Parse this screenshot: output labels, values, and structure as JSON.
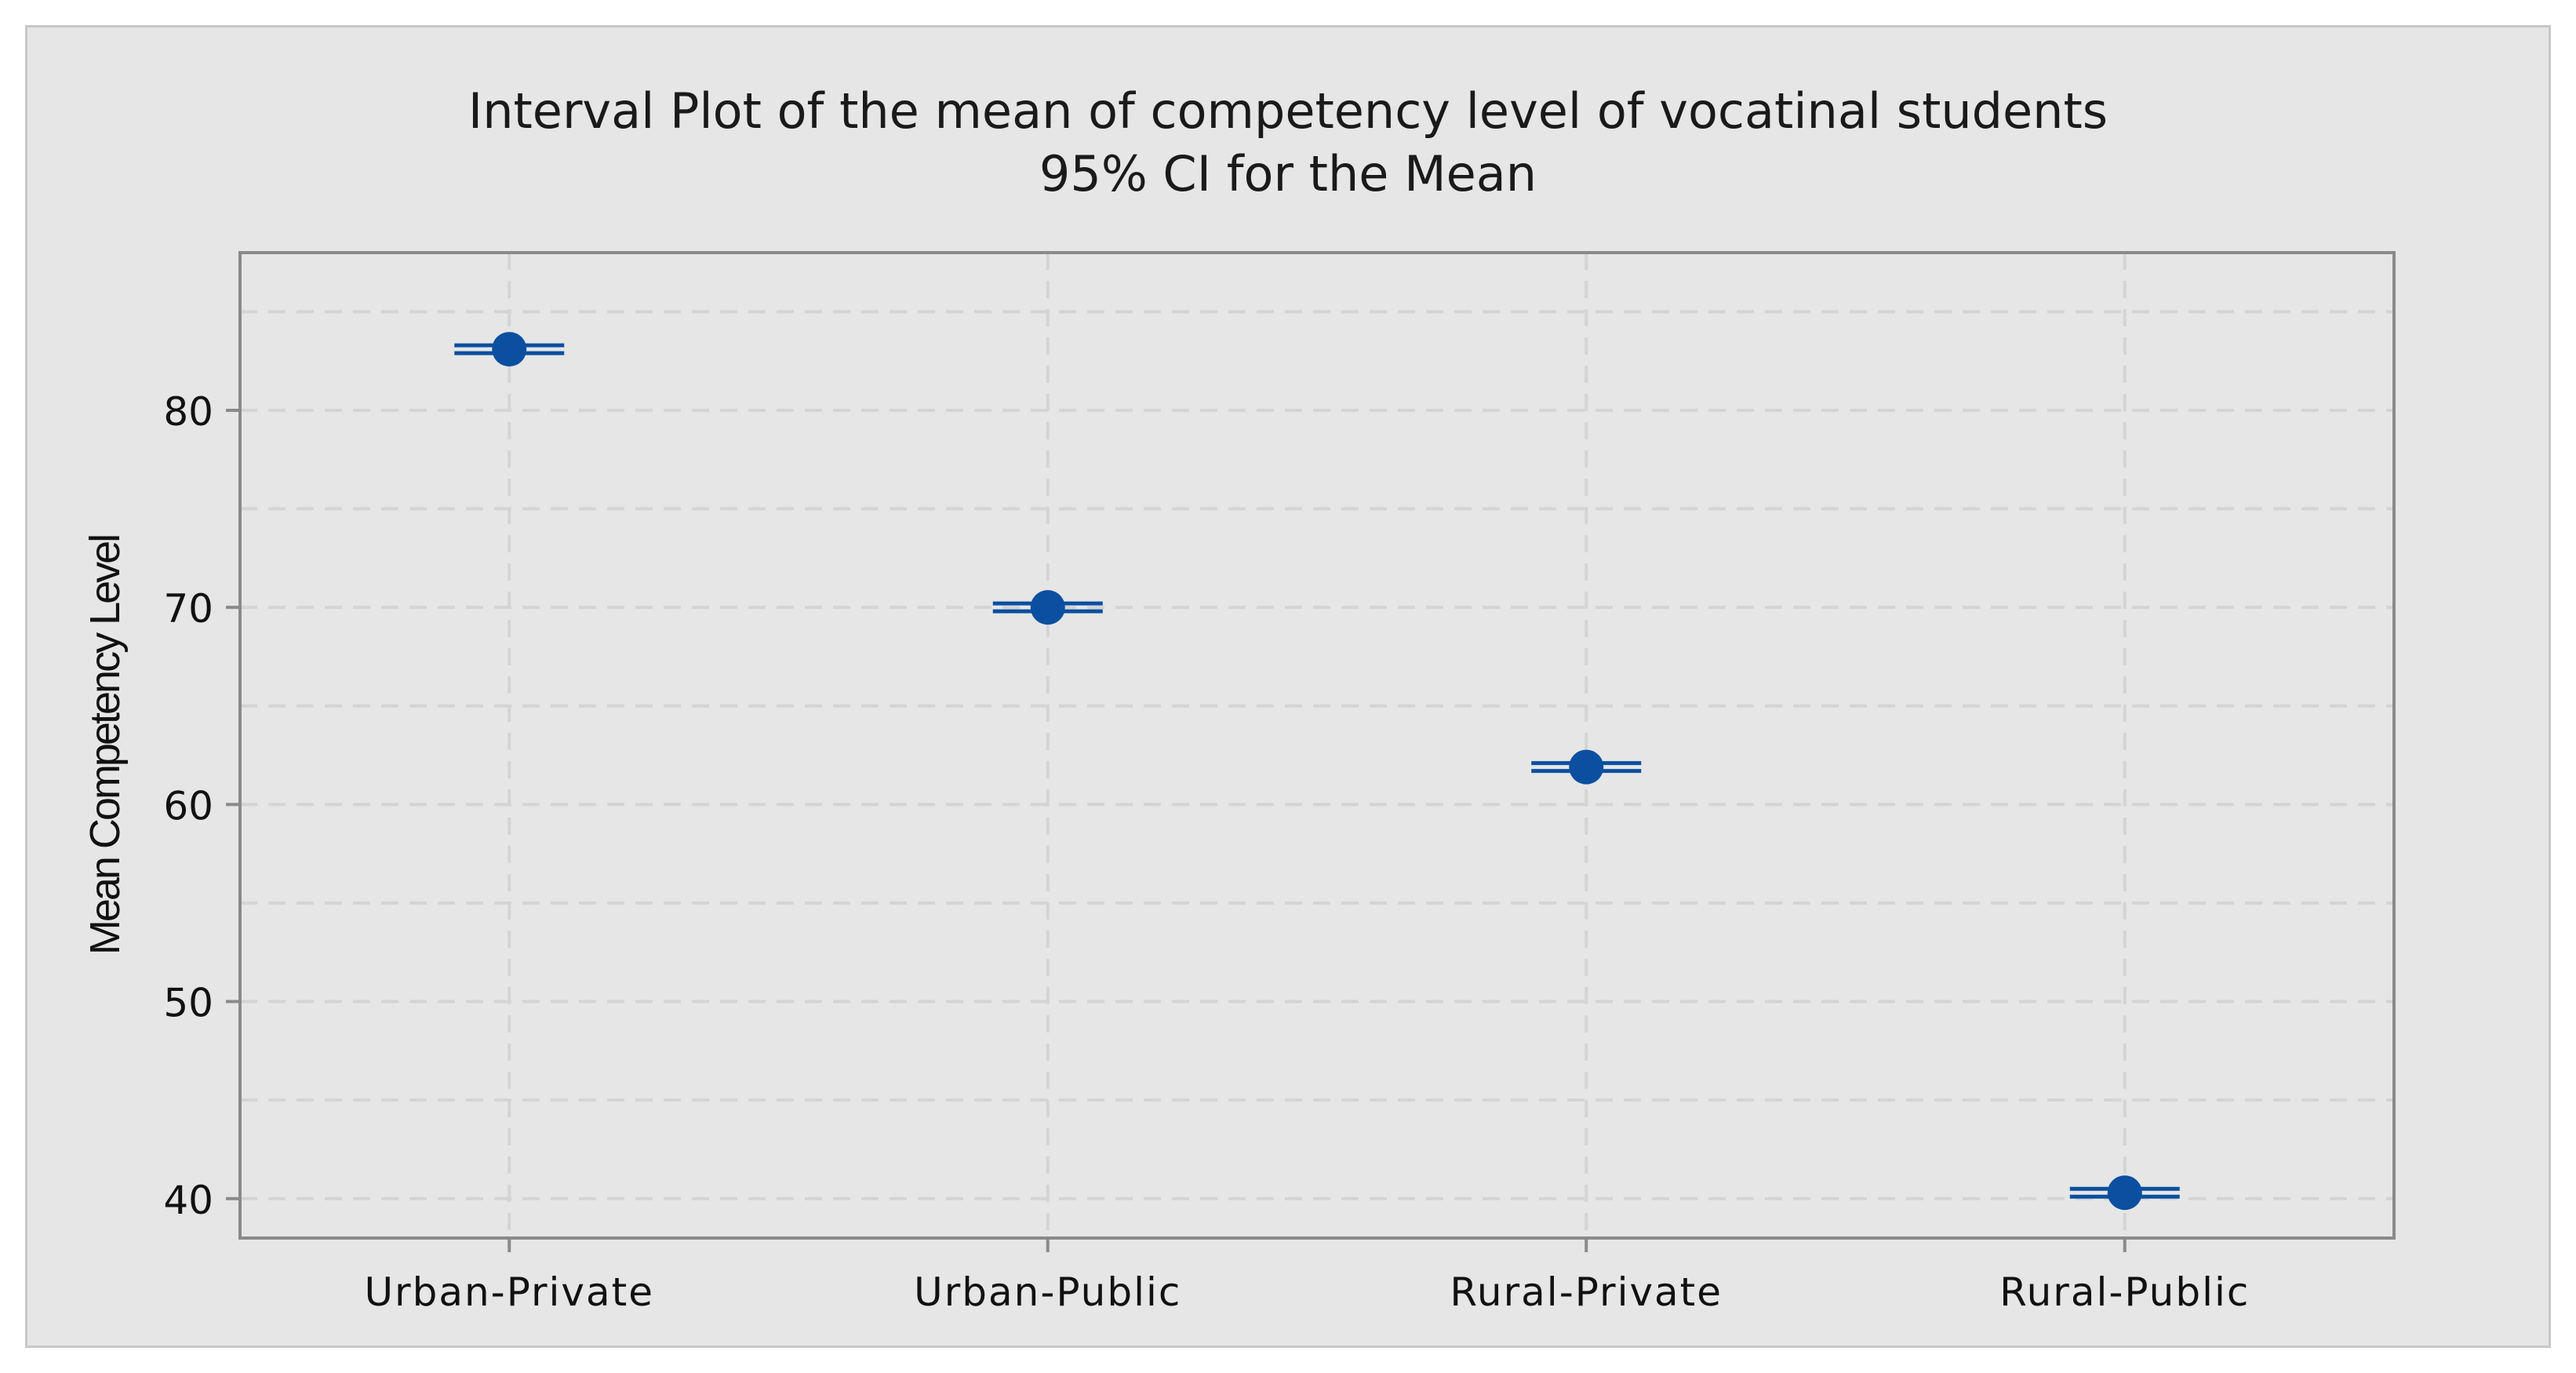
{
  "chart_data": {
    "type": "scatter",
    "title": "Interval Plot of the mean of competency level of vocatinal students",
    "subtitle": "95% CI for the Mean",
    "xlabel": "",
    "ylabel": "Mean Competency Level",
    "categories": [
      "Urban-Private",
      "Urban-Public",
      "Rural-Private",
      "Rural-Public"
    ],
    "means": [
      83.1,
      70.0,
      61.9,
      40.3
    ],
    "ci_lower": [
      82.9,
      69.8,
      61.7,
      40.1
    ],
    "ci_upper": [
      83.3,
      70.2,
      62.1,
      40.5
    ],
    "yticks": [
      40,
      50,
      60,
      70,
      80
    ],
    "ylim": [
      38,
      88
    ],
    "grid": true,
    "legend": "none",
    "colors": {
      "marker": "#0b4fa0",
      "gridline": "#d4d4d4",
      "axis": "#8a8a8a"
    }
  }
}
